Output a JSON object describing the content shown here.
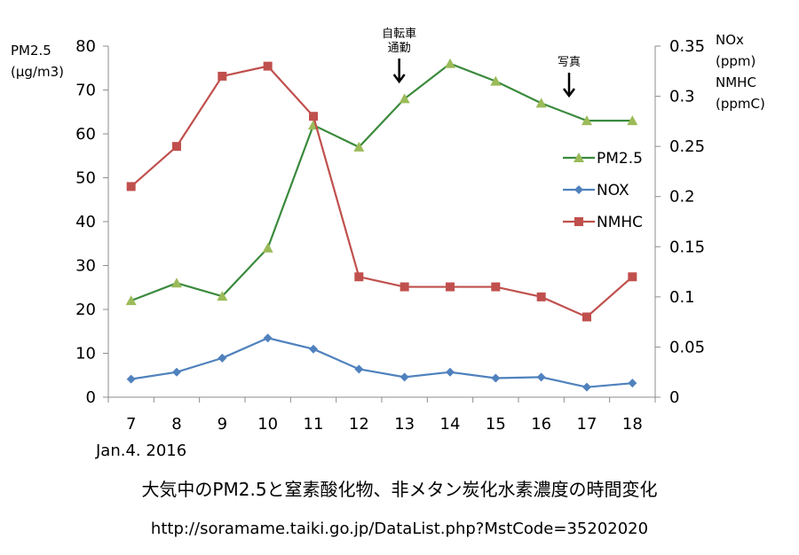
{
  "chart_data": {
    "type": "line",
    "categories": [
      "7",
      "8",
      "9",
      "10",
      "11",
      "12",
      "13",
      "14",
      "15",
      "16",
      "17",
      "18"
    ],
    "y_left": {
      "label_lines": [
        "PM2.5",
        "(µg/m3)"
      ],
      "ylim": [
        0,
        80
      ],
      "ticks": [
        "0",
        "10",
        "20",
        "30",
        "40",
        "50",
        "60",
        "70",
        "80"
      ]
    },
    "y_right": {
      "label_lines": [
        "NOx",
        "(ppm)",
        "NMHC",
        "(ppmC)"
      ],
      "ylim": [
        0,
        0.35
      ],
      "ticks": [
        "0",
        "0.05",
        "0.1",
        "0.15",
        "0.2",
        "0.25",
        "0.3",
        "0.35"
      ]
    },
    "series": [
      {
        "name": "PM2.5",
        "axis": "left",
        "color": "#3A8A3C",
        "marker": "triangle",
        "marker_color": "#9BBB59",
        "values": [
          22,
          26,
          23,
          34,
          62,
          57,
          68,
          76,
          72,
          67,
          63,
          63
        ]
      },
      {
        "name": "NOX",
        "axis": "right",
        "color": "#4F81BD",
        "marker": "diamond",
        "marker_color": "#4F81BD",
        "values": [
          0.018,
          0.025,
          0.039,
          0.059,
          0.048,
          0.028,
          0.02,
          0.025,
          0.019,
          0.02,
          0.01,
          0.014
        ]
      },
      {
        "name": "NMHC",
        "axis": "right",
        "color": "#C0504D",
        "marker": "square",
        "marker_color": "#C0504D",
        "values": [
          0.21,
          0.25,
          0.32,
          0.33,
          0.28,
          0.12,
          0.11,
          0.11,
          0.11,
          0.1,
          0.08,
          0.12
        ]
      }
    ],
    "annotations": [
      {
        "category": "13",
        "lines": [
          "自転車",
          "通勤"
        ]
      },
      {
        "category": "17",
        "lines": [
          "写真"
        ]
      }
    ],
    "legend_position": "right-inside",
    "grid": false
  },
  "date_label": "Jan.4. 2016",
  "caption": "大気中のPM2.5と窒素酸化物、非メタン炭化水素濃度の時間変化",
  "source_url": "http://soramame.taiki.go.jp/DataList.php?MstCode=35202020"
}
